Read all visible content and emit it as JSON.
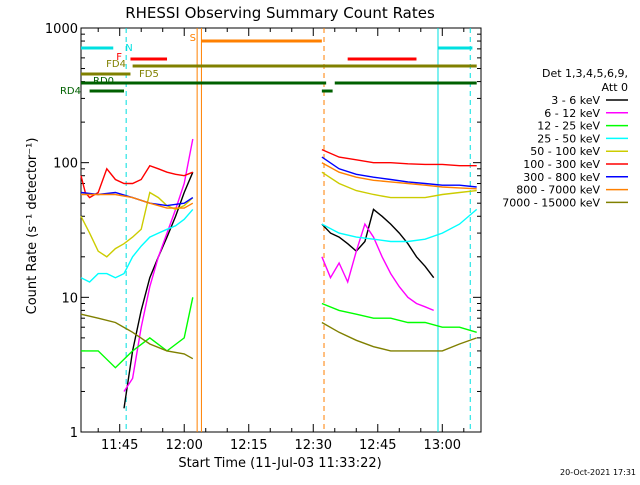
{
  "chart_data": {
    "type": "line",
    "title": "RHESSI Observing Summary Count Rates",
    "xlabel": "Start Time (11-Jul-03 11:33:22)",
    "ylabel": "Count Rate (s⁻¹ detector⁻¹)",
    "y_scale": "log",
    "ylim": [
      1,
      1000
    ],
    "xlim": [
      "11:36:00",
      "13:09:00"
    ],
    "grid": false,
    "legend_position": "right",
    "x_ticks": [
      "11:45",
      "12:00",
      "12:15",
      "12:30",
      "12:45",
      "13:00"
    ],
    "y_ticks": [
      "1",
      "10",
      "100",
      "1000"
    ],
    "legend_header": [
      "Det 1,3,4,5,6,9,",
      "Att 0"
    ],
    "footer_date": "20-Oct-2021 17:31",
    "series": [
      {
        "name": "3 - 6 keV",
        "color": "#000000",
        "segments": [
          {
            "x": [
              "11:46",
              "11:48",
              "11:50",
              "11:52",
              "11:54",
              "11:56",
              "11:58",
              "12:00",
              "12:02"
            ],
            "y": [
              1.5,
              4,
              8,
              14,
              20,
              28,
              40,
              60,
              85
            ]
          },
          {
            "x": [
              "12:32",
              "12:34",
              "12:36",
              "12:38",
              "12:40",
              "12:42",
              "12:44",
              "12:46",
              "12:48",
              "12:50",
              "12:52",
              "12:54",
              "12:56",
              "12:58"
            ],
            "y": [
              35,
              30,
              28,
              25,
              22,
              26,
              45,
              40,
              35,
              30,
              25,
              20,
              17,
              14
            ]
          }
        ]
      },
      {
        "name": "6 - 12 keV",
        "color": "#ff00ff",
        "segments": [
          {
            "x": [
              "11:46",
              "11:48",
              "11:50",
              "11:52",
              "11:54",
              "11:56",
              "11:58",
              "12:00",
              "12:02"
            ],
            "y": [
              2,
              2.5,
              6,
              12,
              20,
              30,
              45,
              70,
              150
            ]
          },
          {
            "x": [
              "12:32",
              "12:34",
              "12:36",
              "12:38",
              "12:40",
              "12:42",
              "12:44",
              "12:46",
              "12:48",
              "12:50",
              "12:52",
              "12:54",
              "12:56",
              "12:58"
            ],
            "y": [
              20,
              14,
              18,
              13,
              22,
              35,
              28,
              20,
              15,
              12,
              10,
              9,
              8.5,
              8
            ]
          }
        ]
      },
      {
        "name": "12 - 25 keV",
        "color": "#00ff00",
        "segments": [
          {
            "x": [
              "11:36",
              "11:40",
              "11:44",
              "11:48",
              "11:52",
              "11:56",
              "12:00",
              "12:02"
            ],
            "y": [
              4,
              4,
              3,
              4,
              5,
              4,
              5,
              10
            ]
          },
          {
            "x": [
              "12:32",
              "12:36",
              "12:40",
              "12:44",
              "12:48",
              "12:52",
              "12:56",
              "13:00",
              "13:04",
              "13:08"
            ],
            "y": [
              9,
              8,
              7.5,
              7,
              7,
              6.5,
              6.5,
              6,
              6,
              5.5
            ]
          }
        ]
      },
      {
        "name": "25 - 50 keV",
        "color": "#00ffff",
        "segments": [
          {
            "x": [
              "11:36",
              "11:38",
              "11:40",
              "11:42",
              "11:44",
              "11:46",
              "11:48",
              "11:50",
              "11:52",
              "11:54",
              "11:56",
              "11:58",
              "12:00",
              "12:02"
            ],
            "y": [
              14,
              13,
              15,
              15,
              14,
              15,
              20,
              24,
              28,
              30,
              32,
              34,
              38,
              45
            ]
          },
          {
            "x": [
              "12:32",
              "12:36",
              "12:40",
              "12:44",
              "12:48",
              "12:52",
              "12:56",
              "13:00",
              "13:04",
              "13:08"
            ],
            "y": [
              35,
              30,
              28,
              27,
              26,
              26,
              27,
              30,
              35,
              45
            ]
          }
        ]
      },
      {
        "name": "50 - 100 keV",
        "color": "#cccc00",
        "segments": [
          {
            "x": [
              "11:36",
              "11:38",
              "11:40",
              "11:42",
              "11:44",
              "11:46",
              "11:48",
              "11:50",
              "11:52",
              "11:54",
              "11:56",
              "11:58",
              "12:00",
              "12:02"
            ],
            "y": [
              40,
              30,
              22,
              20,
              23,
              25,
              28,
              32,
              60,
              55,
              48,
              45,
              48,
              55
            ]
          },
          {
            "x": [
              "12:32",
              "12:36",
              "12:40",
              "12:44",
              "12:48",
              "12:52",
              "12:56",
              "13:00",
              "13:04",
              "13:08"
            ],
            "y": [
              85,
              70,
              62,
              58,
              55,
              55,
              55,
              58,
              60,
              62
            ]
          }
        ]
      },
      {
        "name": "100 - 300 keV",
        "color": "#ff0000",
        "segments": [
          {
            "x": [
              "11:36",
              "11:37",
              "11:38",
              "11:40",
              "11:42",
              "11:44",
              "11:46",
              "11:48",
              "11:50",
              "11:52",
              "11:54",
              "11:56",
              "11:58",
              "12:00",
              "12:02"
            ],
            "y": [
              80,
              60,
              55,
              60,
              90,
              75,
              70,
              70,
              75,
              95,
              90,
              85,
              82,
              80,
              85
            ]
          },
          {
            "x": [
              "12:32",
              "12:36",
              "12:40",
              "12:44",
              "12:48",
              "12:52",
              "12:56",
              "13:00",
              "13:04",
              "13:08"
            ],
            "y": [
              125,
              110,
              105,
              100,
              100,
              98,
              97,
              97,
              95,
              95
            ]
          }
        ]
      },
      {
        "name": "300 - 800 keV",
        "color": "#0000ff",
        "segments": [
          {
            "x": [
              "11:36",
              "11:40",
              "11:44",
              "11:48",
              "11:52",
              "11:56",
              "12:00",
              "12:02"
            ],
            "y": [
              60,
              58,
              60,
              55,
              50,
              48,
              50,
              55
            ]
          },
          {
            "x": [
              "12:32",
              "12:36",
              "12:40",
              "12:44",
              "12:48",
              "12:52",
              "12:56",
              "13:00",
              "13:04",
              "13:08"
            ],
            "y": [
              110,
              90,
              82,
              78,
              75,
              72,
              70,
              68,
              68,
              66
            ]
          }
        ]
      },
      {
        "name": "800 - 7000 keV",
        "color": "#ff8000",
        "segments": [
          {
            "x": [
              "11:36",
              "11:40",
              "11:44",
              "11:48",
              "11:52",
              "11:56",
              "12:00",
              "12:02"
            ],
            "y": [
              58,
              58,
              58,
              55,
              50,
              46,
              46,
              50
            ]
          },
          {
            "x": [
              "12:32",
              "12:36",
              "12:40",
              "12:44",
              "12:48",
              "12:52",
              "12:56",
              "13:00",
              "13:04",
              "13:08"
            ],
            "y": [
              100,
              85,
              78,
              74,
              72,
              70,
              68,
              66,
              65,
              64
            ]
          }
        ]
      },
      {
        "name": "7000 - 15000 keV",
        "color": "#808000",
        "segments": [
          {
            "x": [
              "11:36",
              "11:40",
              "11:44",
              "11:48",
              "11:52",
              "11:56",
              "12:00",
              "12:02"
            ],
            "y": [
              7.5,
              7,
              6.5,
              5.5,
              4.5,
              4,
              3.8,
              3.5
            ]
          },
          {
            "x": [
              "12:32",
              "12:36",
              "12:40",
              "12:44",
              "12:48",
              "12:52",
              "12:56",
              "13:00",
              "13:04",
              "13:08"
            ],
            "y": [
              6.5,
              5.5,
              4.8,
              4.3,
              4,
              4,
              4,
              4,
              4.5,
              5
            ]
          }
        ]
      }
    ],
    "vertical_markers": [
      {
        "x": "11:46:30",
        "color": "#00e0e0",
        "style": "dashed"
      },
      {
        "x": "12:03:00",
        "color": "#ff8000",
        "style": "solid"
      },
      {
        "x": "12:04:00",
        "color": "#ff8000",
        "style": "solid"
      },
      {
        "x": "12:32:30",
        "color": "#ff8000",
        "style": "dashed"
      },
      {
        "x": "12:59:00",
        "color": "#00e0e0",
        "style": "solid"
      },
      {
        "x": "13:06:30",
        "color": "#00e0e0",
        "style": "dashed"
      }
    ],
    "flag_bars": [
      {
        "label": "N",
        "color": "#00e0e0",
        "spans": [
          [
            "11:36",
            "11:43:30"
          ],
          [
            "12:59",
            "13:07"
          ]
        ]
      },
      {
        "label": "S",
        "color": "#ff8000",
        "spans": [
          [
            "12:04",
            "12:32"
          ]
        ]
      },
      {
        "label": "F",
        "color": "#ff0000",
        "spans": [
          [
            "11:47:30",
            "11:56"
          ],
          [
            "12:38",
            "12:54"
          ]
        ]
      },
      {
        "label": "FD4",
        "color": "#808000",
        "spans": [
          [
            "11:48",
            "13:08"
          ]
        ]
      },
      {
        "label": "FD5",
        "color": "#808000",
        "spans": [
          [
            "11:36",
            "11:47:30"
          ]
        ]
      },
      {
        "label": "RD0",
        "color": "#006000",
        "spans": [
          [
            "11:36",
            "12:33"
          ],
          [
            "12:35",
            "13:08"
          ]
        ]
      },
      {
        "label": "RD4",
        "color": "#006000",
        "spans": [
          [
            "11:38",
            "11:46"
          ],
          [
            "12:32",
            "12:34:30"
          ]
        ]
      }
    ]
  }
}
